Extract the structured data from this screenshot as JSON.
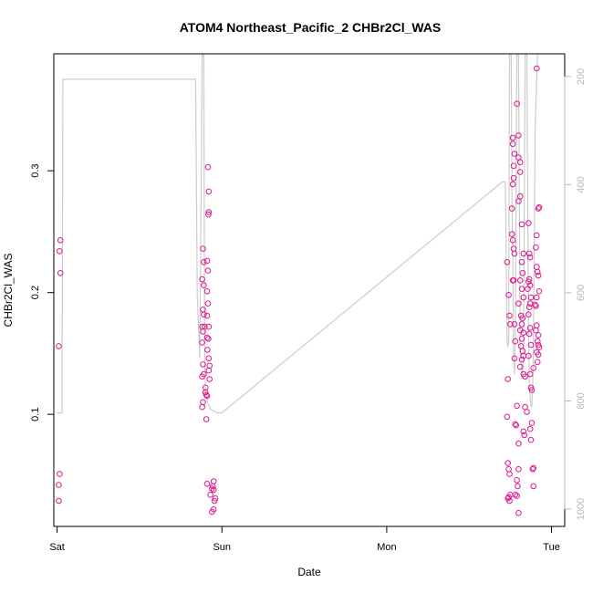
{
  "chart_data": {
    "type": "scatter",
    "title": "ATOM4 Northeast_Pacific_2 CHBr2Cl_WAS",
    "xlabel": "Date",
    "ylabel": "CHBr2Cl_WAS",
    "x_ticks": [
      "Sat",
      "Sun",
      "Mon",
      "Tue"
    ],
    "y_ticks": [
      "0.1",
      "0.2",
      "0.3"
    ],
    "y_right_ticks": [
      "200",
      "400",
      "600",
      "800",
      "1000"
    ],
    "xlim": [
      -0.02,
      3.08
    ],
    "ylim": [
      0.008,
      0.396
    ],
    "y_right_lim": [
      1032,
      158
    ],
    "grid": false,
    "colors": {
      "points": "#e0178f",
      "altitude_line": "#cccccc",
      "right_axis": "#b8b8b8"
    },
    "series": [
      {
        "marker": "circle",
        "points": [
          [
            0.02,
            0.243
          ],
          [
            0.015,
            0.234
          ],
          [
            0.02,
            0.216
          ],
          [
            0.01,
            0.156
          ],
          [
            0.015,
            0.051
          ],
          [
            0.01,
            0.042
          ],
          [
            0.01,
            0.029
          ],
          [
            0.885,
            0.236
          ],
          [
            0.89,
            0.225
          ],
          [
            0.88,
            0.211
          ],
          [
            0.89,
            0.206
          ],
          [
            0.885,
            0.186
          ],
          [
            0.89,
            0.182
          ],
          [
            0.88,
            0.172
          ],
          [
            0.885,
            0.168
          ],
          [
            0.895,
            0.172
          ],
          [
            0.88,
            0.159
          ],
          [
            0.885,
            0.141
          ],
          [
            0.88,
            0.131
          ],
          [
            0.89,
            0.133
          ],
          [
            0.885,
            0.11
          ],
          [
            0.88,
            0.106
          ],
          [
            0.9,
            0.122
          ],
          [
            0.905,
            0.116
          ],
          [
            0.91,
            0.115
          ],
          [
            0.905,
            0.096
          ],
          [
            0.9,
            0.118
          ],
          [
            0.915,
            0.303
          ],
          [
            0.92,
            0.283
          ],
          [
            0.92,
            0.266
          ],
          [
            0.918,
            0.264
          ],
          [
            0.91,
            0.226
          ],
          [
            0.915,
            0.218
          ],
          [
            0.91,
            0.201
          ],
          [
            0.915,
            0.191
          ],
          [
            0.91,
            0.181
          ],
          [
            0.92,
            0.172
          ],
          [
            0.91,
            0.163
          ],
          [
            0.918,
            0.162
          ],
          [
            0.912,
            0.153
          ],
          [
            0.92,
            0.146
          ],
          [
            0.925,
            0.14
          ],
          [
            0.92,
            0.136
          ],
          [
            0.925,
            0.129
          ],
          [
            0.91,
            0.043
          ],
          [
            0.95,
            0.045
          ],
          [
            0.945,
            0.041
          ],
          [
            0.94,
            0.039
          ],
          [
            0.95,
            0.038
          ],
          [
            0.93,
            0.034
          ],
          [
            0.96,
            0.031
          ],
          [
            0.955,
            0.029
          ],
          [
            0.95,
            0.022
          ],
          [
            0.94,
            0.02
          ],
          [
            2.73,
            0.225
          ],
          [
            2.74,
            0.198
          ],
          [
            2.745,
            0.181
          ],
          [
            2.75,
            0.174
          ],
          [
            2.735,
            0.129
          ],
          [
            2.73,
            0.098
          ],
          [
            2.765,
            0.327
          ],
          [
            2.765,
            0.322
          ],
          [
            2.775,
            0.314
          ],
          [
            2.77,
            0.304
          ],
          [
            2.77,
            0.294
          ],
          [
            2.765,
            0.289
          ],
          [
            2.76,
            0.269
          ],
          [
            2.76,
            0.248
          ],
          [
            2.765,
            0.243
          ],
          [
            2.77,
            0.236
          ],
          [
            2.775,
            0.232
          ],
          [
            2.77,
            0.21
          ],
          [
            2.765,
            0.21
          ],
          [
            2.775,
            0.174
          ],
          [
            2.78,
            0.16
          ],
          [
            2.775,
            0.146
          ],
          [
            2.78,
            0.092
          ],
          [
            2.785,
            0.091
          ],
          [
            2.735,
            0.06
          ],
          [
            2.74,
            0.055
          ],
          [
            2.745,
            0.051
          ],
          [
            2.75,
            0.034
          ],
          [
            2.74,
            0.032
          ],
          [
            2.735,
            0.031
          ],
          [
            2.745,
            0.029
          ],
          [
            2.79,
            0.355
          ],
          [
            2.8,
            0.329
          ],
          [
            2.8,
            0.311
          ],
          [
            2.81,
            0.307
          ],
          [
            2.81,
            0.299
          ],
          [
            2.81,
            0.279
          ],
          [
            2.8,
            0.275
          ],
          [
            2.82,
            0.256
          ],
          [
            2.83,
            0.232
          ],
          [
            2.82,
            0.225
          ],
          [
            2.825,
            0.216
          ],
          [
            2.81,
            0.21
          ],
          [
            2.82,
            0.203
          ],
          [
            2.83,
            0.196
          ],
          [
            2.8,
            0.191
          ],
          [
            2.815,
            0.181
          ],
          [
            2.825,
            0.179
          ],
          [
            2.82,
            0.174
          ],
          [
            2.81,
            0.169
          ],
          [
            2.83,
            0.167
          ],
          [
            2.82,
            0.162
          ],
          [
            2.815,
            0.156
          ],
          [
            2.825,
            0.152
          ],
          [
            2.83,
            0.148
          ],
          [
            2.82,
            0.145
          ],
          [
            2.81,
            0.139
          ],
          [
            2.83,
            0.133
          ],
          [
            2.84,
            0.131
          ],
          [
            2.84,
            0.106
          ],
          [
            2.85,
            0.102
          ],
          [
            2.83,
            0.086
          ],
          [
            2.835,
            0.083
          ],
          [
            2.8,
            0.076
          ],
          [
            2.79,
            0.107
          ],
          [
            2.795,
            0.041
          ],
          [
            2.79,
            0.046
          ],
          [
            2.8,
            0.055
          ],
          [
            2.78,
            0.034
          ],
          [
            2.79,
            0.033
          ],
          [
            2.8,
            0.019
          ],
          [
            2.86,
            0.257
          ],
          [
            2.865,
            0.232
          ],
          [
            2.87,
            0.229
          ],
          [
            2.865,
            0.211
          ],
          [
            2.86,
            0.209
          ],
          [
            2.855,
            0.203
          ],
          [
            2.87,
            0.206
          ],
          [
            2.875,
            0.196
          ],
          [
            2.87,
            0.191
          ],
          [
            2.865,
            0.188
          ],
          [
            2.86,
            0.182
          ],
          [
            2.87,
            0.171
          ],
          [
            2.865,
            0.166
          ],
          [
            2.875,
            0.157
          ],
          [
            2.86,
            0.148
          ],
          [
            2.87,
            0.133
          ],
          [
            2.875,
            0.122
          ],
          [
            2.88,
            0.12
          ],
          [
            2.88,
            0.093
          ],
          [
            2.87,
            0.088
          ],
          [
            2.875,
            0.079
          ],
          [
            2.885,
            0.055
          ],
          [
            2.89,
            0.056
          ],
          [
            2.89,
            0.041
          ],
          [
            2.89,
            0.138
          ],
          [
            2.91,
            0.384
          ],
          [
            2.92,
            0.269
          ],
          [
            2.925,
            0.27
          ],
          [
            2.91,
            0.247
          ],
          [
            2.905,
            0.237
          ],
          [
            2.91,
            0.221
          ],
          [
            2.915,
            0.217
          ],
          [
            2.92,
            0.214
          ],
          [
            2.925,
            0.201
          ],
          [
            2.91,
            0.196
          ],
          [
            2.9,
            0.19
          ],
          [
            2.905,
            0.189
          ],
          [
            2.91,
            0.173
          ],
          [
            2.905,
            0.169
          ],
          [
            2.92,
            0.165
          ],
          [
            2.915,
            0.16
          ],
          [
            2.92,
            0.157
          ],
          [
            2.925,
            0.155
          ],
          [
            2.91,
            0.151
          ],
          [
            2.92,
            0.149
          ],
          [
            2.915,
            0.143
          ]
        ]
      },
      {
        "name": "",
        "type": "line",
        "axis": "right",
        "points": [
          [
            0.0,
            822
          ],
          [
            0.03,
            822
          ],
          [
            0.035,
            205
          ],
          [
            0.84,
            205
          ],
          [
            0.85,
            600
          ],
          [
            0.865,
            720
          ],
          [
            0.875,
            380
          ],
          [
            0.88,
            160
          ],
          [
            0.89,
            160
          ],
          [
            0.895,
            720
          ],
          [
            0.9,
            780
          ],
          [
            0.91,
            800
          ],
          [
            0.93,
            815
          ],
          [
            0.97,
            822
          ],
          [
            1.0,
            822
          ],
          [
            2.7,
            395
          ],
          [
            2.72,
            395
          ],
          [
            2.73,
            690
          ],
          [
            2.735,
            700
          ],
          [
            2.74,
            690
          ],
          [
            2.745,
            160
          ],
          [
            2.755,
            160
          ],
          [
            2.76,
            420
          ],
          [
            2.765,
            540
          ],
          [
            2.77,
            720
          ],
          [
            2.775,
            750
          ],
          [
            2.78,
            690
          ],
          [
            2.79,
            160
          ],
          [
            2.8,
            160
          ],
          [
            2.805,
            420
          ],
          [
            2.81,
            700
          ],
          [
            2.82,
            760
          ],
          [
            2.83,
            720
          ],
          [
            2.835,
            450
          ],
          [
            2.84,
            160
          ],
          [
            2.85,
            160
          ],
          [
            2.855,
            420
          ],
          [
            2.86,
            660
          ],
          [
            2.865,
            760
          ],
          [
            2.87,
            790
          ],
          [
            2.875,
            810
          ],
          [
            2.88,
            810
          ],
          [
            2.885,
            780
          ],
          [
            2.89,
            700
          ],
          [
            2.895,
            520
          ],
          [
            2.9,
            300
          ],
          [
            2.91,
            200
          ],
          [
            2.915,
            160
          ],
          [
            2.92,
            160
          ]
        ]
      }
    ]
  }
}
